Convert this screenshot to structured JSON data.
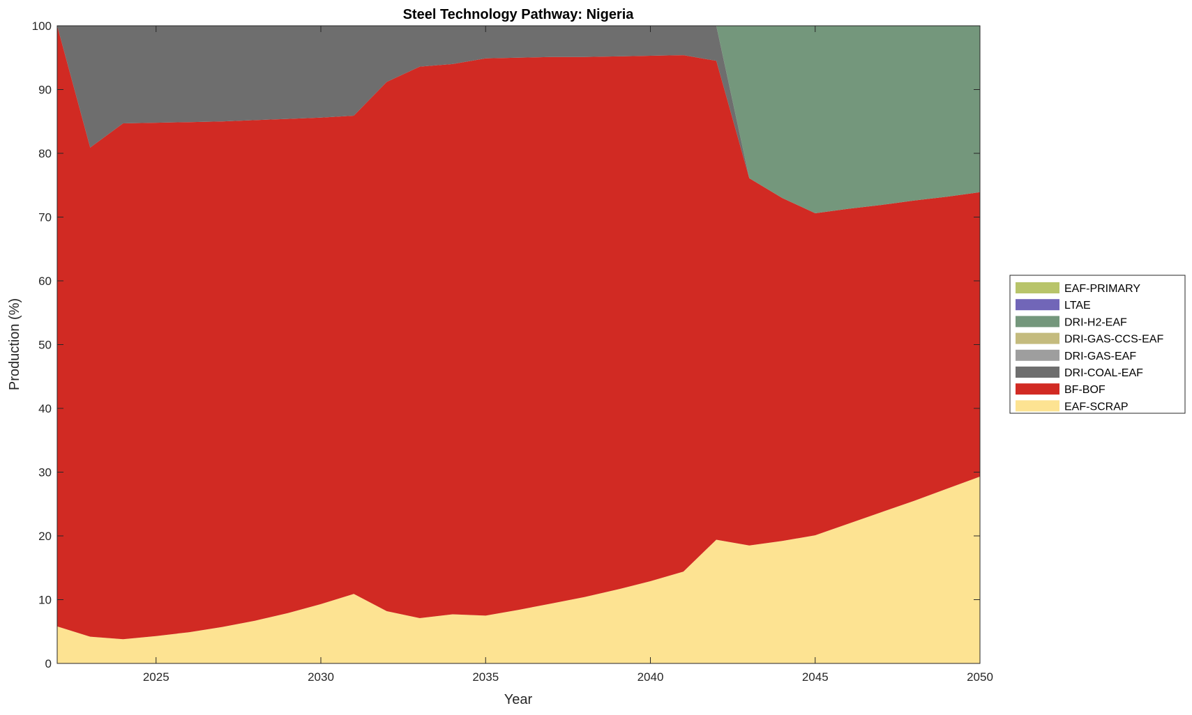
{
  "chart_data": {
    "type": "area",
    "stacked": true,
    "title": "Steel Technology Pathway: Nigeria",
    "xlabel": "Year",
    "ylabel": "Production (%)",
    "xlim": [
      2022,
      2050
    ],
    "ylim": [
      0,
      100
    ],
    "xticks": [
      2025,
      2030,
      2035,
      2040,
      2045,
      2050
    ],
    "yticks": [
      0,
      10,
      20,
      30,
      40,
      50,
      60,
      70,
      80,
      90,
      100
    ],
    "grid": false,
    "legend_placement": "right-outside",
    "x": [
      2022,
      2023,
      2024,
      2025,
      2026,
      2027,
      2028,
      2029,
      2030,
      2031,
      2032,
      2033,
      2034,
      2035,
      2036,
      2037,
      2038,
      2039,
      2040,
      2041,
      2042,
      2043,
      2044,
      2045,
      2046,
      2047,
      2048,
      2049,
      2050
    ],
    "series": [
      {
        "name": "EAF-SCRAP",
        "color": "#fde392",
        "values": [
          5.8,
          4.2,
          3.8,
          4.3,
          4.9,
          5.7,
          6.7,
          7.9,
          9.3,
          10.9,
          8.2,
          7.1,
          7.7,
          7.5,
          8.4,
          9.4,
          10.4,
          11.6,
          12.9,
          14.4,
          19.4,
          18.5,
          19.2,
          20.1,
          21.9,
          23.7,
          25.5,
          27.4,
          29.3
        ]
      },
      {
        "name": "BF-BOF",
        "color": "#d12a23",
        "values": [
          94.2,
          76.7,
          80.9,
          80.5,
          80.0,
          79.3,
          78.5,
          77.5,
          76.3,
          75.0,
          83.0,
          86.5,
          86.3,
          87.4,
          86.6,
          85.7,
          84.7,
          83.6,
          82.4,
          81.0,
          75.1,
          57.6,
          53.8,
          50.5,
          49.4,
          48.2,
          47.1,
          45.8,
          44.6
        ]
      },
      {
        "name": "DRI-COAL-EAF",
        "color": "#6e6e6e",
        "values": [
          0,
          19.1,
          15.3,
          15.2,
          15.1,
          15.0,
          14.8,
          14.6,
          14.4,
          14.1,
          8.8,
          6.4,
          6.0,
          5.1,
          5.0,
          4.9,
          4.9,
          4.8,
          4.7,
          4.6,
          5.5,
          0,
          0,
          0,
          0,
          0,
          0,
          0,
          0
        ]
      },
      {
        "name": "DRI-GAS-EAF",
        "color": "#9e9e9e",
        "values": [
          0,
          0,
          0,
          0,
          0,
          0,
          0,
          0,
          0,
          0,
          0,
          0,
          0,
          0,
          0,
          0,
          0,
          0,
          0,
          0,
          0,
          0,
          0,
          0,
          0,
          0,
          0,
          0,
          0
        ]
      },
      {
        "name": "DRI-GAS-CCS-EAF",
        "color": "#c4bb7e",
        "values": [
          0,
          0,
          0,
          0,
          0,
          0,
          0,
          0,
          0,
          0,
          0,
          0,
          0,
          0,
          0,
          0,
          0,
          0,
          0,
          0,
          0,
          0,
          0,
          0,
          0,
          0,
          0,
          0,
          0
        ]
      },
      {
        "name": "DRI-H2-EAF",
        "color": "#74977c",
        "values": [
          0,
          0,
          0,
          0,
          0,
          0,
          0,
          0,
          0,
          0,
          0,
          0,
          0,
          0,
          0,
          0,
          0,
          0,
          0,
          0,
          0,
          23.9,
          27.0,
          29.4,
          28.7,
          28.1,
          27.4,
          26.8,
          26.1
        ]
      },
      {
        "name": "LTAE",
        "color": "#7166b8",
        "values": [
          0,
          0,
          0,
          0,
          0,
          0,
          0,
          0,
          0,
          0,
          0,
          0,
          0,
          0,
          0,
          0,
          0,
          0,
          0,
          0,
          0,
          0,
          0,
          0,
          0,
          0,
          0,
          0,
          0
        ]
      },
      {
        "name": "EAF-PRIMARY",
        "color": "#b8c46a",
        "values": [
          0,
          0,
          0,
          0,
          0,
          0,
          0,
          0,
          0,
          0,
          0,
          0,
          0,
          0,
          0,
          0,
          0,
          0,
          0,
          0,
          0,
          0,
          0,
          0,
          0,
          0,
          0,
          0,
          0
        ]
      }
    ],
    "legend_order": [
      "EAF-PRIMARY",
      "LTAE",
      "DRI-H2-EAF",
      "DRI-GAS-CCS-EAF",
      "DRI-GAS-EAF",
      "DRI-COAL-EAF",
      "BF-BOF",
      "EAF-SCRAP"
    ]
  }
}
